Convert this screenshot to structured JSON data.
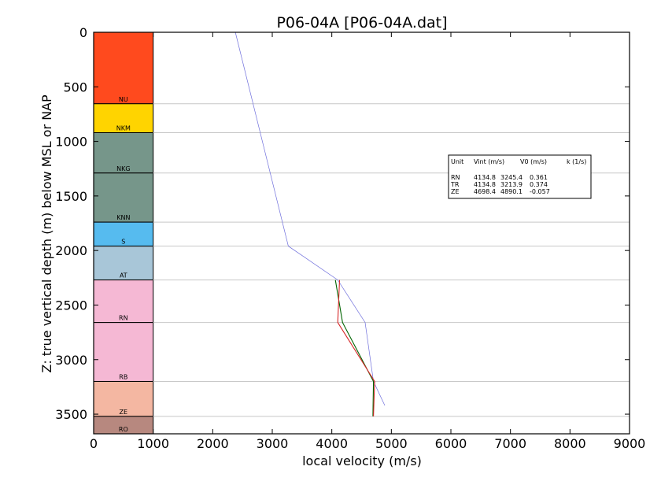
{
  "chart_data": {
    "type": "line",
    "title": "P06-04A [P06-04A.dat]",
    "xlabel": "local velocity (m/s)",
    "ylabel": "Z: true vertical depth (m) below MSL or NAP",
    "xlim": [
      0,
      9000
    ],
    "ylim": [
      0,
      3680
    ],
    "y_inverted": true,
    "x_ticks": [
      0,
      1000,
      2000,
      3000,
      4000,
      5000,
      6000,
      7000,
      8000,
      9000
    ],
    "y_ticks": [
      0,
      500,
      1000,
      1500,
      2000,
      2500,
      3000,
      3500
    ],
    "grid": "horizontal lines at unit boundaries",
    "units": [
      {
        "label": "NU",
        "top": 0,
        "bottom": 655,
        "color": "#ff4a1e"
      },
      {
        "label": "NKM",
        "top": 655,
        "bottom": 920,
        "color": "#ffd400"
      },
      {
        "label": "NKG",
        "top": 920,
        "bottom": 1290,
        "color": "#76968a"
      },
      {
        "label": "KNN",
        "top": 1290,
        "bottom": 1740,
        "color": "#76968a"
      },
      {
        "label": "S",
        "top": 1740,
        "bottom": 1960,
        "color": "#56bbef"
      },
      {
        "label": "AT",
        "top": 1960,
        "bottom": 2270,
        "color": "#a8c6d8"
      },
      {
        "label": "RN",
        "top": 2270,
        "bottom": 2660,
        "color": "#f5b8d4"
      },
      {
        "label": "RB",
        "top": 2660,
        "bottom": 3200,
        "color": "#f5b8d4"
      },
      {
        "label": "ZE",
        "top": 3200,
        "bottom": 3520,
        "color": "#f4b7a2"
      },
      {
        "label": "RO",
        "top": 3520,
        "bottom": 3680,
        "color": "#b7887f"
      }
    ],
    "series": [
      {
        "color": "#6f6fdc",
        "points": [
          [
            2380,
            0
          ],
          [
            3270,
            1960
          ],
          [
            4100,
            2270
          ],
          [
            4560,
            2660
          ],
          [
            4700,
            3200
          ],
          [
            4890,
            3420
          ]
        ]
      },
      {
        "color": "#006400",
        "points": [
          [
            4060,
            2270
          ],
          [
            4180,
            2660
          ],
          [
            4700,
            3200
          ],
          [
            4690,
            3520
          ]
        ]
      },
      {
        "color": "#d62728",
        "points": [
          [
            4130,
            2270
          ],
          [
            4100,
            2660
          ],
          [
            4720,
            3200
          ],
          [
            4700,
            3520
          ]
        ]
      }
    ],
    "legend": {
      "placement": "right",
      "headers": [
        "Unit",
        "Vint (m/s)",
        "V0 (m/s)",
        "k (1/s)"
      ],
      "rows": [
        [
          "RN",
          "4134.8",
          "3245.4",
          "0.361"
        ],
        [
          "TR",
          "4134.8",
          "3213.9",
          "0.374"
        ],
        [
          "ZE",
          "4698.4",
          "4890.1",
          "-0.057"
        ]
      ]
    }
  }
}
